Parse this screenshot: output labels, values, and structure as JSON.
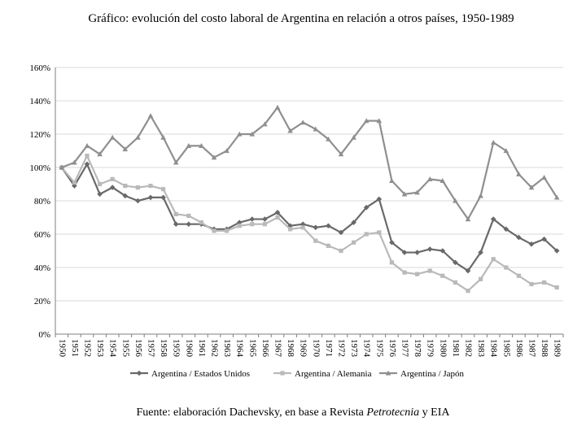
{
  "title": "Gráfico: evolución del costo laboral de Argentina en relación a otros países, 1950-1989",
  "source": {
    "prefix": "Fuente: elaboración Dachevsky, en base a Revista ",
    "italic": "Petrotecnia",
    "suffix": " y EIA"
  },
  "colors": {
    "usa": "#696969",
    "alemania": "#b9b9b9",
    "japon": "#8f8f8f",
    "grid": "#d9d9d9",
    "axis": "#7f7f7f"
  },
  "chart_data": {
    "type": "line",
    "x": [
      "1950",
      "1951",
      "1952",
      "1953",
      "1954",
      "1955",
      "1956",
      "1957",
      "1958",
      "1959",
      "1960",
      "1961",
      "1962",
      "1963",
      "1964",
      "1965",
      "1966",
      "1967",
      "1968",
      "1969",
      "1970",
      "1971",
      "1972",
      "1973",
      "1974",
      "1975",
      "1976",
      "1977",
      "1978",
      "1979",
      "1980",
      "1981",
      "1982",
      "1983",
      "1984",
      "1985",
      "1986",
      "1987",
      "1988",
      "1989"
    ],
    "yticks": [
      "0%",
      "20%",
      "40%",
      "60%",
      "80%",
      "100%",
      "120%",
      "140%",
      "160%"
    ],
    "ylim": [
      0,
      160
    ],
    "grid": true,
    "legend_position": "bottom",
    "series": [
      {
        "name": "Argentina / Estados Unidos",
        "marker": "diamond",
        "values": [
          100,
          89,
          102,
          84,
          88,
          83,
          80,
          82,
          82,
          66,
          66,
          66,
          63,
          63,
          67,
          69,
          69,
          73,
          65,
          66,
          64,
          65,
          61,
          67,
          76,
          81,
          55,
          49,
          49,
          51,
          50,
          43,
          38,
          49,
          69,
          63,
          58,
          54,
          57,
          50
        ]
      },
      {
        "name": "Argentina / Alemania",
        "marker": "square",
        "values": [
          100,
          91,
          107,
          90,
          93,
          89,
          88,
          89,
          87,
          72,
          71,
          67,
          62,
          62,
          65,
          66,
          66,
          70,
          63,
          64,
          56,
          53,
          50,
          55,
          60,
          61,
          43,
          37,
          36,
          38,
          35,
          31,
          26,
          33,
          45,
          40,
          35,
          30,
          31,
          28
        ]
      },
      {
        "name": "Argentina / Japón",
        "marker": "triangle",
        "values": [
          100,
          103,
          113,
          108,
          118,
          111,
          118,
          131,
          118,
          103,
          113,
          113,
          106,
          110,
          120,
          120,
          126,
          136,
          122,
          127,
          123,
          117,
          108,
          118,
          128,
          128,
          92,
          84,
          85,
          93,
          92,
          80,
          69,
          83,
          115,
          110,
          96,
          88,
          94,
          82
        ]
      }
    ]
  }
}
